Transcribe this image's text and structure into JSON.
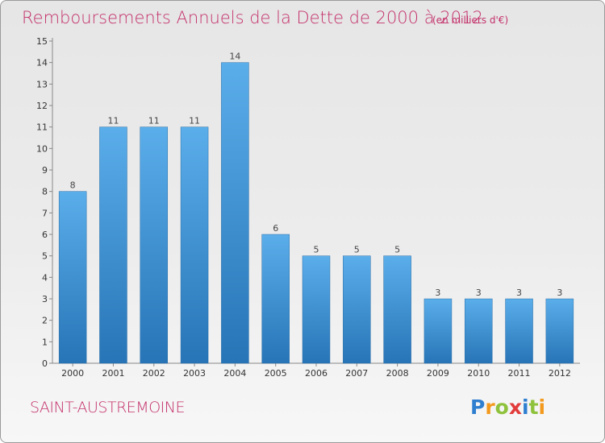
{
  "chart_data": {
    "type": "bar",
    "title": "Remboursements Annuels de la Dette de 2000 à 2012",
    "unit_note": "(en milliers d'€)",
    "categories": [
      "2000",
      "2001",
      "2002",
      "2003",
      "2004",
      "2005",
      "2006",
      "2007",
      "2008",
      "2009",
      "2010",
      "2011",
      "2012"
    ],
    "values": [
      8,
      11,
      11,
      11,
      14,
      6,
      5,
      5,
      5,
      3,
      3,
      3,
      3
    ],
    "ylim": [
      0,
      15
    ],
    "yticks": [
      "0",
      "1",
      "2",
      "3",
      "4",
      "5",
      "6",
      "7",
      "8",
      "9",
      "10",
      "11",
      "12",
      "13",
      "14",
      "15"
    ],
    "grid": false,
    "bar_color": "#3a8fd6"
  },
  "commune": "SAINT-AUSTREMOINE",
  "logo": {
    "letters": [
      "P",
      "r",
      "o",
      "x",
      "i",
      "t",
      "i"
    ],
    "colors": [
      "#2f7fd0",
      "#f39a1e",
      "#8fc23c",
      "#e23b3b",
      "#2f7fd0",
      "#8fc23c",
      "#f39a1e"
    ]
  }
}
